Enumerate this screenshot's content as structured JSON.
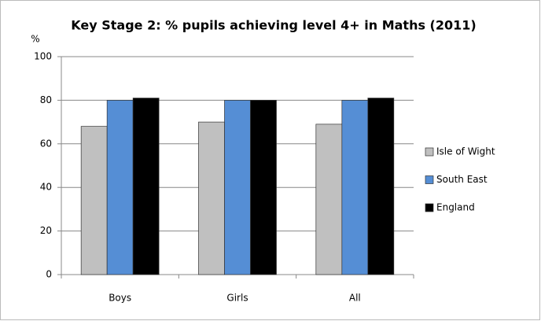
{
  "chart_data": {
    "type": "bar",
    "title": "Key Stage 2: % pupils achieving level 4+ in Maths (2011)",
    "y_label": "%",
    "categories": [
      "Boys",
      "Girls",
      "All"
    ],
    "series": [
      {
        "name": "Isle of Wight",
        "color": "#c0c0c0",
        "values": [
          68,
          70,
          69
        ]
      },
      {
        "name": "South East",
        "color": "#558ed5",
        "values": [
          80,
          80,
          80
        ]
      },
      {
        "name": "England",
        "color": "#000000",
        "values": [
          81,
          80,
          81
        ]
      }
    ],
    "ylim": [
      0,
      100
    ],
    "yticks": [
      0,
      20,
      40,
      60,
      80,
      100
    ],
    "grid": true,
    "legend": "right"
  }
}
